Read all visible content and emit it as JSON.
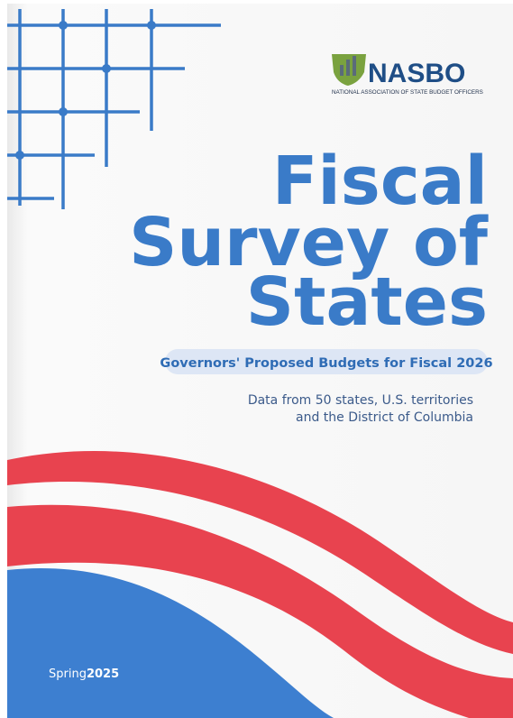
{
  "logo": {
    "name": "NASBO",
    "full_name": "NATIONAL ASSOCIATION OF STATE BUDGET OFFICERS"
  },
  "title": {
    "lines": [
      "Fiscal",
      "Survey of",
      "States"
    ]
  },
  "subtitle": "Governors' Proposed Budgets for Fiscal 2026",
  "description": {
    "lines": [
      "Data from 50 states, U.S. territories",
      "and the District of Columbia"
    ]
  },
  "edition": {
    "season": "Spring",
    "year": "2025"
  }
}
